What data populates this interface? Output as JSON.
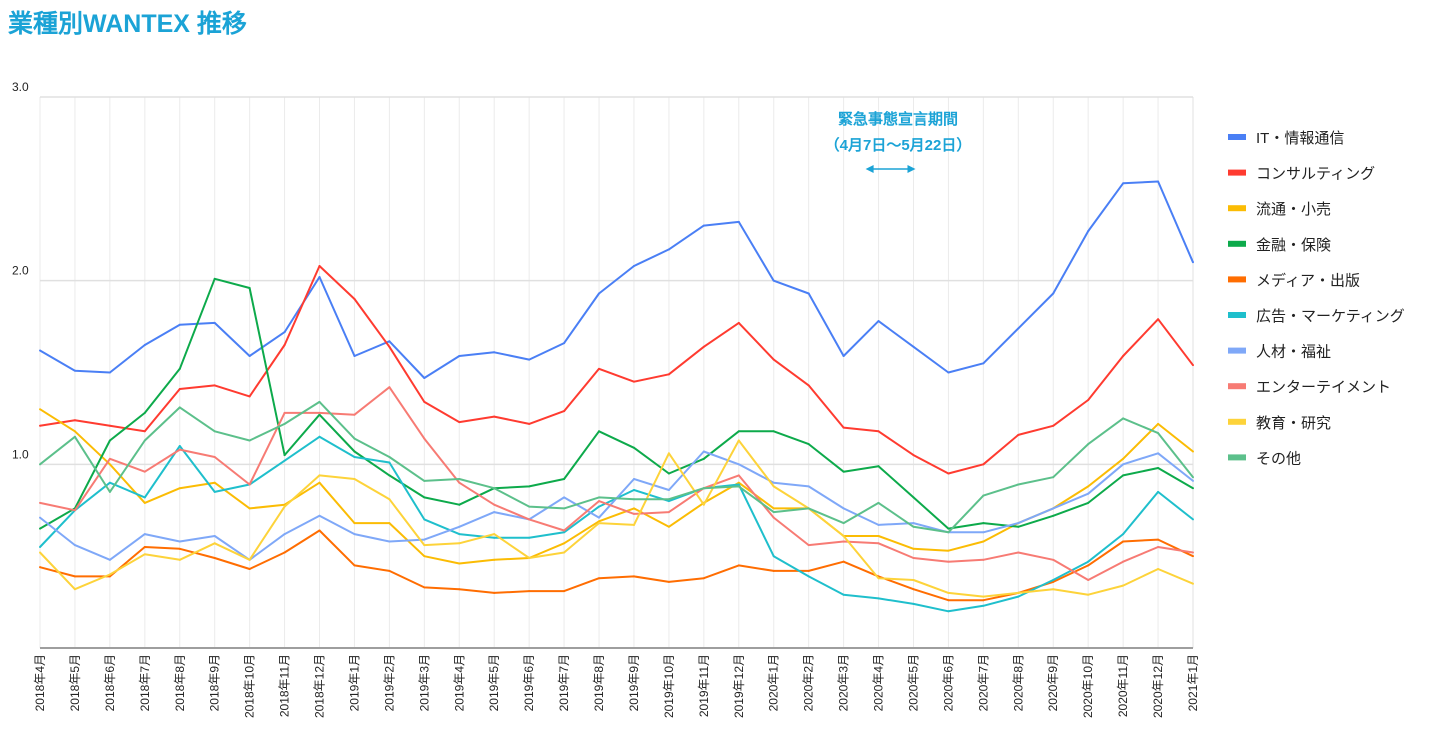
{
  "chart_data": {
    "type": "line",
    "title": "業種別WANTEX 推移",
    "xlabel": "",
    "ylabel": "",
    "ylim": [
      0,
      3
    ],
    "yticks": [
      "1.0",
      "2.0",
      "3.0"
    ],
    "grid": true,
    "legend_position": "right",
    "annotation": {
      "line1": "緊急事態宣言期間",
      "line2": "（4月7日〜5月22日）",
      "from": "2020年3月",
      "to": "2020年5月"
    },
    "x": [
      "2018年4月",
      "2018年5月",
      "2018年6月",
      "2018年7月",
      "2018年8月",
      "2018年9月",
      "2018年10月",
      "2018年11月",
      "2018年12月",
      "2019年1月",
      "2019年2月",
      "2019年3月",
      "2019年4月",
      "2019年5月",
      "2019年6月",
      "2019年7月",
      "2019年8月",
      "2019年9月",
      "2019年10月",
      "2019年11月",
      "2019年12月",
      "2020年1月",
      "2020年2月",
      "2020年3月",
      "2020年4月",
      "2020年5月",
      "2020年6月",
      "2020年7月",
      "2020年8月",
      "2020年9月",
      "2020年10月",
      "2020年11月",
      "2020年12月",
      "2021年1月"
    ],
    "series": [
      {
        "name": "IT・情報通信",
        "color": "#4a7ff5",
        "values": [
          1.62,
          1.51,
          1.5,
          1.65,
          1.76,
          1.77,
          1.59,
          1.72,
          2.02,
          1.59,
          1.67,
          1.47,
          1.59,
          1.61,
          1.57,
          1.66,
          1.93,
          2.08,
          2.17,
          2.3,
          2.32,
          2.0,
          1.93,
          1.59,
          1.78,
          1.64,
          1.5,
          1.55,
          1.74,
          1.93,
          2.27,
          2.53,
          2.54,
          2.1
        ]
      },
      {
        "name": "コンサルティング",
        "color": "#ff3b30",
        "values": [
          1.21,
          1.24,
          1.21,
          1.18,
          1.41,
          1.43,
          1.37,
          1.65,
          2.08,
          1.9,
          1.64,
          1.34,
          1.23,
          1.26,
          1.22,
          1.29,
          1.52,
          1.45,
          1.49,
          1.64,
          1.77,
          1.57,
          1.43,
          1.2,
          1.18,
          1.05,
          0.95,
          1.0,
          1.16,
          1.21,
          1.35,
          1.59,
          1.79,
          1.54
        ]
      },
      {
        "name": "流通・小売",
        "color": "#fbbc04",
        "values": [
          1.3,
          1.18,
          1.0,
          0.79,
          0.87,
          0.9,
          0.76,
          0.78,
          0.9,
          0.68,
          0.68,
          0.5,
          0.46,
          0.48,
          0.49,
          0.57,
          0.69,
          0.76,
          0.66,
          0.79,
          0.9,
          0.76,
          0.76,
          0.61,
          0.61,
          0.54,
          0.53,
          0.58,
          0.68,
          0.76,
          0.88,
          1.03,
          1.22,
          1.07
        ]
      },
      {
        "name": "金融・保険",
        "color": "#0daa4b",
        "values": [
          0.65,
          0.76,
          1.13,
          1.28,
          1.52,
          2.01,
          1.96,
          1.05,
          1.27,
          1.07,
          0.94,
          0.82,
          0.78,
          0.87,
          0.88,
          0.92,
          1.18,
          1.09,
          0.95,
          1.03,
          1.18,
          1.18,
          1.11,
          0.96,
          0.99,
          0.82,
          0.65,
          0.68,
          0.66,
          0.72,
          0.79,
          0.94,
          0.98,
          0.87
        ]
      },
      {
        "name": "メディア・出版",
        "color": "#ff6d01",
        "values": [
          0.44,
          0.39,
          0.39,
          0.55,
          0.54,
          0.49,
          0.43,
          0.52,
          0.64,
          0.45,
          0.42,
          0.33,
          0.32,
          0.3,
          0.31,
          0.31,
          0.38,
          0.39,
          0.36,
          0.38,
          0.45,
          0.42,
          0.42,
          0.47,
          0.39,
          0.32,
          0.26,
          0.26,
          0.3,
          0.36,
          0.45,
          0.58,
          0.59,
          0.5
        ]
      },
      {
        "name": "広告・マーケティング",
        "color": "#1fbfcc",
        "values": [
          0.55,
          0.75,
          0.9,
          0.82,
          1.1,
          0.85,
          0.89,
          1.02,
          1.15,
          1.04,
          1.01,
          0.7,
          0.62,
          0.6,
          0.6,
          0.63,
          0.77,
          0.86,
          0.8,
          0.87,
          0.89,
          0.5,
          0.39,
          0.29,
          0.27,
          0.24,
          0.2,
          0.23,
          0.28,
          0.37,
          0.47,
          0.62,
          0.85,
          0.7
        ]
      },
      {
        "name": "人材・福祉",
        "color": "#7fa8f8",
        "values": [
          0.71,
          0.56,
          0.48,
          0.62,
          0.58,
          0.61,
          0.48,
          0.62,
          0.72,
          0.62,
          0.58,
          0.59,
          0.66,
          0.74,
          0.7,
          0.82,
          0.71,
          0.92,
          0.86,
          1.07,
          1.0,
          0.9,
          0.88,
          0.76,
          0.67,
          0.68,
          0.63,
          0.63,
          0.68,
          0.76,
          0.84,
          1.0,
          1.06,
          0.91
        ]
      },
      {
        "name": "エンターテイメント",
        "color": "#f77b74",
        "values": [
          0.79,
          0.75,
          1.03,
          0.96,
          1.08,
          1.04,
          0.89,
          1.28,
          1.28,
          1.27,
          1.42,
          1.14,
          0.9,
          0.78,
          0.7,
          0.64,
          0.8,
          0.73,
          0.74,
          0.87,
          0.94,
          0.71,
          0.56,
          0.58,
          0.57,
          0.49,
          0.47,
          0.48,
          0.52,
          0.48,
          0.37,
          0.47,
          0.55,
          0.52
        ]
      },
      {
        "name": "教育・研究",
        "color": "#fdd33a",
        "values": [
          0.52,
          0.32,
          0.4,
          0.51,
          0.48,
          0.57,
          0.48,
          0.77,
          0.94,
          0.92,
          0.81,
          0.56,
          0.57,
          0.62,
          0.49,
          0.52,
          0.68,
          0.67,
          1.06,
          0.78,
          1.13,
          0.88,
          0.76,
          0.61,
          0.38,
          0.37,
          0.3,
          0.28,
          0.3,
          0.32,
          0.29,
          0.34,
          0.43,
          0.35
        ]
      },
      {
        "name": "その他",
        "color": "#5cc08b",
        "values": [
          1.0,
          1.15,
          0.85,
          1.13,
          1.31,
          1.18,
          1.13,
          1.22,
          1.34,
          1.14,
          1.04,
          0.91,
          0.92,
          0.87,
          0.77,
          0.76,
          0.82,
          0.81,
          0.81,
          0.87,
          0.88,
          0.74,
          0.76,
          0.68,
          0.79,
          0.66,
          0.63,
          0.83,
          0.89,
          0.93,
          1.11,
          1.25,
          1.17,
          0.93
        ]
      }
    ]
  }
}
